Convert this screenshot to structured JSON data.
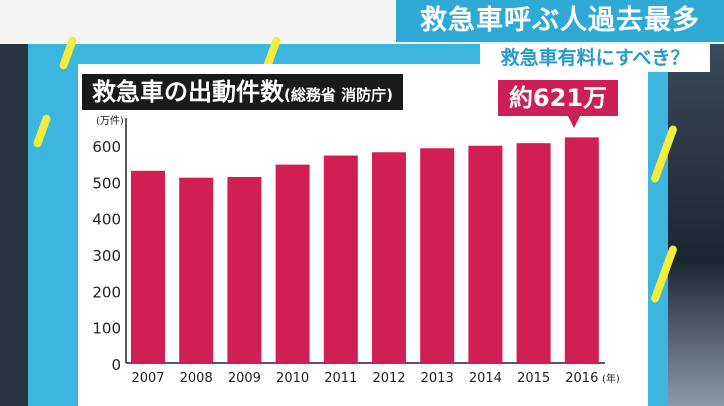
{
  "headline": "救急車呼ぶ人過去最多",
  "subheadline": "救急車有料にすべき？",
  "colors": {
    "bar": "#d11e55",
    "board": "#3cb6df",
    "stripe": "#f4ec3c",
    "headline_bg": "#2fa9d6"
  },
  "chart_data": {
    "type": "bar",
    "title": "救急車の出動件数",
    "source": "(総務省 消防庁)",
    "ylabel": "(万件)",
    "xlabel": "(年)",
    "categories": [
      "2007",
      "2008",
      "2009",
      "2010",
      "2011",
      "2012",
      "2013",
      "2014",
      "2015",
      "2016"
    ],
    "values": [
      529,
      510,
      512,
      546,
      571,
      580,
      591,
      598,
      605,
      621
    ],
    "ylim": [
      0,
      600
    ],
    "yticks": [
      "0",
      "100",
      "200",
      "300",
      "400",
      "500",
      "600"
    ],
    "grid": false,
    "annotation": "約621万件"
  }
}
